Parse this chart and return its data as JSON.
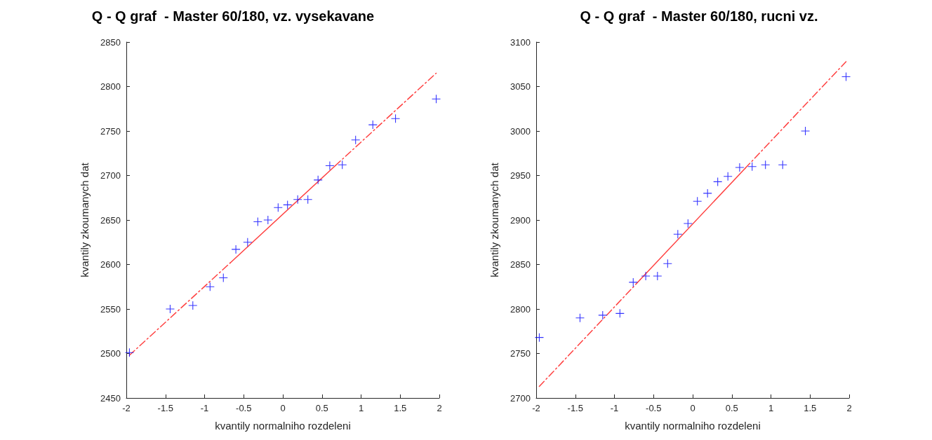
{
  "chart_data": [
    {
      "type": "scatter",
      "title": "Q - Q graf  - Master 60/180, vz. vysekavane",
      "xlabel": "kvantily normalniho rozdeleni",
      "ylabel": "kvantily zkoumanych dat",
      "xlim": [
        -2,
        2
      ],
      "xticks": [
        -2,
        -1.5,
        -1,
        -0.5,
        0,
        0.5,
        1,
        1.5,
        2
      ],
      "ylim": [
        2450,
        2850
      ],
      "yticks": [
        2450,
        2500,
        2550,
        2600,
        2650,
        2700,
        2750,
        2800,
        2850
      ],
      "grid": false,
      "marker": "cross",
      "x": [
        -1.96,
        -1.44,
        -1.15,
        -0.93,
        -0.76,
        -0.6,
        -0.45,
        -0.32,
        -0.19,
        -0.06,
        0.06,
        0.19,
        0.32,
        0.45,
        0.6,
        0.76,
        0.93,
        1.15,
        1.44,
        1.96
      ],
      "series": [
        {
          "color": "#0000ff",
          "values": [
            2501,
            2550,
            2554,
            2575,
            2585,
            2617,
            2625,
            2648,
            2650,
            2664,
            2667,
            2673,
            2673,
            2695,
            2711,
            2712,
            2740,
            2757,
            2764,
            2786
          ]
        },
        {
          "type": "line",
          "color": "#ff4040",
          "line_style": "dashed",
          "marker": "none",
          "x": [
            -1.96,
            -0.67
          ],
          "values": [
            2498,
            2602
          ]
        },
        {
          "type": "line",
          "color": "#ff4040",
          "line_style": "solid",
          "marker": "none",
          "x": [
            -0.67,
            0.67
          ],
          "values": [
            2602,
            2711
          ]
        },
        {
          "type": "line",
          "color": "#ff4040",
          "line_style": "dashed",
          "marker": "none",
          "x": [
            0.67,
            1.96
          ],
          "values": [
            2711,
            2815
          ]
        }
      ]
    },
    {
      "type": "scatter",
      "title": "Q - Q graf  - Master 60/180, rucni vz.",
      "xlabel": "kvantily normalniho rozdeleni",
      "ylabel": "kvantily zkoumanych dat",
      "xlim": [
        -2,
        2
      ],
      "xticks": [
        -2,
        -1.5,
        -1,
        -0.5,
        0,
        0.5,
        1,
        1.5,
        2
      ],
      "ylim": [
        2700,
        3100
      ],
      "yticks": [
        2700,
        2750,
        2800,
        2850,
        2900,
        2950,
        3000,
        3050,
        3100
      ],
      "grid": false,
      "marker": "cross",
      "x": [
        -1.96,
        -1.44,
        -1.15,
        -0.93,
        -0.76,
        -0.6,
        -0.45,
        -0.32,
        -0.19,
        -0.06,
        0.06,
        0.19,
        0.32,
        0.45,
        0.6,
        0.76,
        0.93,
        1.15,
        1.44,
        1.96
      ],
      "series": [
        {
          "color": "#0000ff",
          "values": [
            2768,
            2790,
            2793,
            2795,
            2830,
            2837,
            2837,
            2851,
            2884,
            2896,
            2921,
            2930,
            2943,
            2949,
            2959,
            2960,
            2962,
            2962,
            3000,
            3061
          ]
        },
        {
          "type": "line",
          "color": "#ff4040",
          "line_style": "dashed",
          "marker": "none",
          "x": [
            -1.96,
            -0.67
          ],
          "values": [
            2713,
            2833
          ]
        },
        {
          "type": "line",
          "color": "#ff4040",
          "line_style": "solid",
          "marker": "none",
          "x": [
            -0.67,
            0.67
          ],
          "values": [
            2833,
            2958
          ]
        },
        {
          "type": "line",
          "color": "#ff4040",
          "line_style": "dashed",
          "marker": "none",
          "x": [
            0.67,
            1.96
          ],
          "values": [
            2958,
            3078
          ]
        }
      ]
    }
  ]
}
